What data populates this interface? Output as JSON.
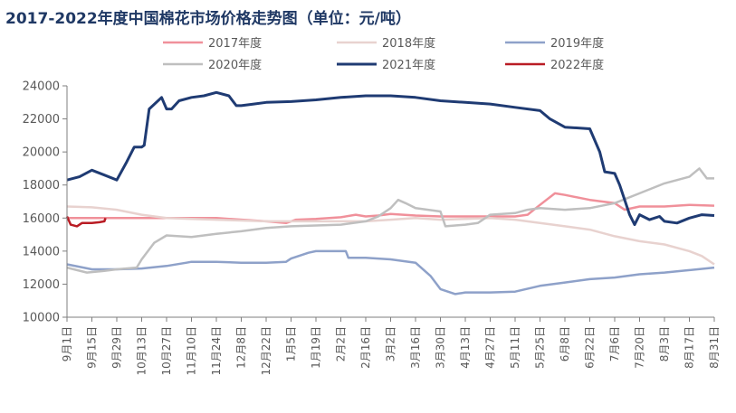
{
  "chart_data": {
    "type": "line",
    "title": "2017-2022年度中国棉花市场价格走势图（单位：元/吨）",
    "xlabel": "",
    "ylabel": "",
    "ylim": [
      10000,
      24000
    ],
    "yticks": [
      10000,
      12000,
      14000,
      16000,
      18000,
      20000,
      22000,
      24000
    ],
    "grid": false,
    "legend_position": "top",
    "x_tick_labels": [
      "9月1日",
      "9月15日",
      "9月29日",
      "10月13日",
      "10月27日",
      "11月10日",
      "11月24日",
      "12月8日",
      "12月22日",
      "1月5日",
      "1月19日",
      "2月2日",
      "2月16日",
      "3月2日",
      "3月16日",
      "3月30日",
      "4月13日",
      "4月27日",
      "5月11日",
      "5月25日",
      "6月8日",
      "6月22日",
      "7月6日",
      "7月20日",
      "8月3日",
      "8月17日",
      "8月31日"
    ],
    "series": [
      {
        "name": "2017年度",
        "color": "#f0909a",
        "width": 2.5,
        "points": [
          [
            0,
            16000
          ],
          [
            2,
            16000
          ],
          [
            4,
            16000
          ],
          [
            6,
            16000
          ],
          [
            8,
            15800
          ],
          [
            8.8,
            15700
          ],
          [
            9.2,
            15900
          ],
          [
            10,
            15950
          ],
          [
            11,
            16050
          ],
          [
            11.6,
            16200
          ],
          [
            12,
            16100
          ],
          [
            12.5,
            16150
          ],
          [
            13,
            16250
          ],
          [
            14,
            16150
          ],
          [
            15,
            16100
          ],
          [
            16,
            16100
          ],
          [
            17,
            16100
          ],
          [
            18,
            16100
          ],
          [
            18.5,
            16200
          ],
          [
            19,
            16800
          ],
          [
            19.6,
            17500
          ],
          [
            20,
            17400
          ],
          [
            21,
            17100
          ],
          [
            22,
            16900
          ],
          [
            22.4,
            16500
          ],
          [
            23,
            16700
          ],
          [
            24,
            16700
          ],
          [
            25,
            16800
          ],
          [
            26,
            16750
          ]
        ]
      },
      {
        "name": "2018年度",
        "color": "#e8d2cf",
        "width": 2.5,
        "points": [
          [
            0,
            16700
          ],
          [
            1,
            16650
          ],
          [
            2,
            16500
          ],
          [
            3,
            16200
          ],
          [
            4,
            16000
          ],
          [
            5,
            15950
          ],
          [
            6,
            15900
          ],
          [
            7,
            15850
          ],
          [
            8,
            15800
          ],
          [
            9,
            15800
          ],
          [
            10,
            15800
          ],
          [
            11,
            15800
          ],
          [
            12,
            15800
          ],
          [
            13,
            15900
          ],
          [
            14,
            16000
          ],
          [
            15,
            15900
          ],
          [
            16,
            15950
          ],
          [
            17,
            16000
          ],
          [
            18,
            15900
          ],
          [
            19,
            15700
          ],
          [
            20,
            15500
          ],
          [
            21,
            15300
          ],
          [
            22,
            14900
          ],
          [
            23,
            14600
          ],
          [
            24,
            14400
          ],
          [
            25,
            14000
          ],
          [
            25.5,
            13700
          ],
          [
            26,
            13200
          ]
        ]
      },
      {
        "name": "2019年度",
        "color": "#8ea1c9",
        "width": 2.5,
        "points": [
          [
            0,
            13200
          ],
          [
            1,
            12900
          ],
          [
            2,
            12900
          ],
          [
            3,
            12950
          ],
          [
            4,
            13100
          ],
          [
            4.8,
            13300
          ],
          [
            5,
            13350
          ],
          [
            6,
            13350
          ],
          [
            7,
            13300
          ],
          [
            8,
            13300
          ],
          [
            8.8,
            13350
          ],
          [
            9,
            13550
          ],
          [
            9.7,
            13900
          ],
          [
            10,
            14000
          ],
          [
            11,
            14000
          ],
          [
            11.2,
            14000
          ],
          [
            11.3,
            13600
          ],
          [
            12,
            13600
          ],
          [
            13,
            13500
          ],
          [
            14,
            13300
          ],
          [
            14.6,
            12500
          ],
          [
            15,
            11700
          ],
          [
            15.6,
            11400
          ],
          [
            16,
            11500
          ],
          [
            17,
            11500
          ],
          [
            18,
            11550
          ],
          [
            19,
            11900
          ],
          [
            20,
            12100
          ],
          [
            21,
            12300
          ],
          [
            22,
            12400
          ],
          [
            23,
            12600
          ],
          [
            24,
            12700
          ],
          [
            25,
            12850
          ],
          [
            26,
            13000
          ]
        ]
      },
      {
        "name": "2020年度",
        "color": "#bfbfbf",
        "width": 2.5,
        "points": [
          [
            0,
            13000
          ],
          [
            0.8,
            12700
          ],
          [
            1.5,
            12800
          ],
          [
            2,
            12900
          ],
          [
            2.8,
            13000
          ],
          [
            3,
            13500
          ],
          [
            3.5,
            14500
          ],
          [
            4,
            14950
          ],
          [
            5,
            14850
          ],
          [
            6,
            15050
          ],
          [
            7,
            15200
          ],
          [
            8,
            15400
          ],
          [
            9,
            15500
          ],
          [
            10,
            15550
          ],
          [
            11,
            15600
          ],
          [
            12,
            15800
          ],
          [
            12.5,
            16100
          ],
          [
            13,
            16600
          ],
          [
            13.3,
            17100
          ],
          [
            13.6,
            16900
          ],
          [
            14,
            16600
          ],
          [
            15,
            16400
          ],
          [
            15.2,
            15500
          ],
          [
            16,
            15600
          ],
          [
            16.5,
            15700
          ],
          [
            17,
            16200
          ],
          [
            18,
            16300
          ],
          [
            18.5,
            16500
          ],
          [
            19,
            16600
          ],
          [
            20,
            16500
          ],
          [
            21,
            16600
          ],
          [
            22,
            16900
          ],
          [
            23,
            17500
          ],
          [
            24,
            18100
          ],
          [
            25,
            18500
          ],
          [
            25.4,
            19000
          ],
          [
            25.7,
            18400
          ],
          [
            26,
            18400
          ]
        ]
      },
      {
        "name": "2021年度",
        "color": "#1f3b73",
        "width": 3,
        "points": [
          [
            0,
            18300
          ],
          [
            0.5,
            18500
          ],
          [
            1,
            18900
          ],
          [
            1.5,
            18600
          ],
          [
            2,
            18300
          ],
          [
            2.4,
            19400
          ],
          [
            2.7,
            20300
          ],
          [
            3,
            20300
          ],
          [
            3.1,
            20400
          ],
          [
            3.3,
            22600
          ],
          [
            3.8,
            23300
          ],
          [
            4,
            22600
          ],
          [
            4.2,
            22600
          ],
          [
            4.5,
            23100
          ],
          [
            5,
            23300
          ],
          [
            5.5,
            23400
          ],
          [
            6,
            23600
          ],
          [
            6.5,
            23400
          ],
          [
            6.8,
            22800
          ],
          [
            7,
            22800
          ],
          [
            7.5,
            22900
          ],
          [
            8,
            23000
          ],
          [
            9,
            23050
          ],
          [
            10,
            23150
          ],
          [
            11,
            23300
          ],
          [
            12,
            23400
          ],
          [
            13,
            23400
          ],
          [
            14,
            23300
          ],
          [
            15,
            23100
          ],
          [
            16,
            23000
          ],
          [
            17,
            22900
          ],
          [
            18,
            22700
          ],
          [
            19,
            22500
          ],
          [
            19.4,
            22000
          ],
          [
            20,
            21500
          ],
          [
            21,
            21400
          ],
          [
            21.4,
            20000
          ],
          [
            21.6,
            18800
          ],
          [
            22,
            18700
          ],
          [
            22.2,
            18000
          ],
          [
            22.6,
            16200
          ],
          [
            22.8,
            15600
          ],
          [
            23,
            16200
          ],
          [
            23.4,
            15900
          ],
          [
            23.8,
            16100
          ],
          [
            24,
            15800
          ],
          [
            24.5,
            15700
          ],
          [
            25,
            16000
          ],
          [
            25.5,
            16200
          ],
          [
            26,
            16150
          ]
        ]
      },
      {
        "name": "2022年度",
        "color": "#b91c24",
        "width": 2.5,
        "points": [
          [
            0,
            16100
          ],
          [
            0.15,
            15600
          ],
          [
            0.4,
            15500
          ],
          [
            0.6,
            15700
          ],
          [
            1,
            15700
          ],
          [
            1.3,
            15750
          ],
          [
            1.5,
            15800
          ],
          [
            1.55,
            16000
          ]
        ]
      }
    ]
  }
}
